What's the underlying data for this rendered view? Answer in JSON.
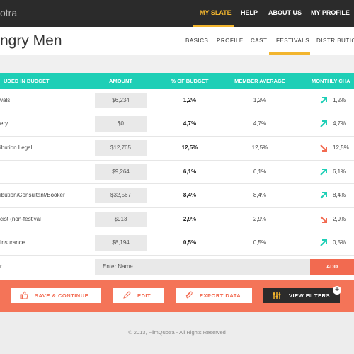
{
  "nav": {
    "logo": "otra",
    "items": [
      "MY SLATE",
      "HELP",
      "ABOUT US",
      "MY PROFILE"
    ],
    "active": 0
  },
  "header": {
    "title": "ngry Men",
    "tabs": [
      "BASICS",
      "PROFILE",
      "CAST",
      "FESTIVALS",
      "DISTRIBUTION"
    ],
    "active_tab": 3
  },
  "table": {
    "columns": [
      "UDED IN BUDGET",
      "AMOUNT",
      "% OF BUDGET",
      "MEMBER AVERAGE",
      "MONTHLY CHA"
    ],
    "rows": [
      {
        "label": "vals",
        "amount": "$6,234",
        "percent": "1,2%",
        "average": "1,2%",
        "change": "1,2%",
        "trend": "up"
      },
      {
        "label": "ery",
        "amount": "$0",
        "percent": "4,7%",
        "average": "4,7%",
        "change": "4,7%",
        "trend": "up"
      },
      {
        "label": "ibution Legal",
        "amount": "$12,765",
        "percent": "12,5%",
        "average": "12,5%",
        "change": "12,5%",
        "trend": "down"
      },
      {
        "amount": "$9,264",
        "percent": "6,1%",
        "average": "6,1%",
        "change": "6,1%",
        "trend": "up"
      },
      {
        "label": "ibution/Consultant/Booker",
        "amount": "$32,567",
        "percent": "8,4%",
        "average": "8,4%",
        "change": "8,4%",
        "trend": "up"
      },
      {
        "label": "cist (non-festival",
        "amount": "$913",
        "percent": "2,9%",
        "average": "2,9%",
        "change": "2,9%",
        "trend": "down"
      },
      {
        "label": "Insurance",
        "amount": "$8,194",
        "percent": "0,5%",
        "average": "0,5%",
        "change": "0,5%",
        "trend": "up"
      }
    ],
    "add_row": {
      "label": "r",
      "placeholder": "Enter Name...",
      "button": "ADD"
    }
  },
  "actions": [
    "SAVE & CONTINUE",
    "EDIT",
    "EXPORT DATA",
    "VIEW FILTERS"
  ],
  "footer": "© 2013, FilmQuotra - All Rights Reserved"
}
